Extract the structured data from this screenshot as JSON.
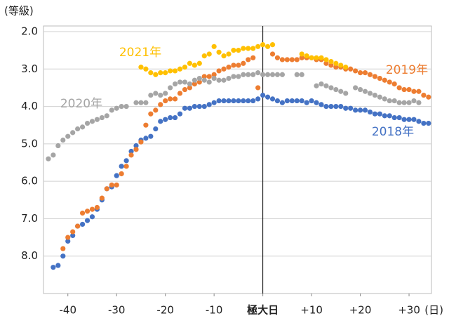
{
  "chart_data": {
    "type": "scatter",
    "y_label": "(等級)",
    "x_label": "(日)",
    "x": [
      -44,
      -43,
      -42,
      -41,
      -40,
      -39,
      -38,
      -37,
      -36,
      -35,
      -34,
      -33,
      -32,
      -31,
      -30,
      -29,
      -28,
      -27,
      -26,
      -25,
      -24,
      -23,
      -22,
      -21,
      -20,
      -19,
      -18,
      -17,
      -16,
      -15,
      -14,
      -13,
      -12,
      -11,
      -10,
      -9,
      -8,
      -7,
      -6,
      -5,
      -4,
      -3,
      -2,
      -1,
      0,
      1,
      2,
      3,
      4,
      5,
      6,
      7,
      8,
      9,
      10,
      11,
      12,
      13,
      14,
      15,
      16,
      17,
      18,
      19,
      20,
      21,
      22,
      23,
      24,
      25,
      26,
      27,
      28,
      29,
      30,
      31,
      32,
      33,
      34
    ],
    "series": [
      {
        "name": "2018年",
        "color": "#4472c4",
        "values": [
          null,
          8.3,
          8.25,
          8.0,
          7.6,
          7.45,
          7.2,
          7.15,
          7.05,
          6.95,
          6.75,
          6.5,
          6.2,
          6.15,
          5.85,
          5.6,
          5.45,
          5.2,
          5.05,
          4.9,
          4.85,
          4.8,
          4.6,
          4.4,
          4.35,
          4.3,
          4.3,
          4.2,
          4.05,
          4.05,
          4.0,
          4.0,
          4.0,
          3.95,
          3.9,
          3.85,
          3.85,
          3.85,
          3.85,
          3.85,
          3.85,
          3.85,
          3.85,
          3.8,
          3.7,
          3.75,
          3.8,
          3.85,
          3.9,
          3.85,
          3.85,
          3.85,
          3.85,
          3.9,
          3.85,
          3.9,
          3.95,
          4.0,
          4.0,
          4.0,
          4.0,
          4.05,
          4.05,
          4.1,
          4.1,
          4.1,
          4.15,
          4.2,
          4.2,
          4.25,
          4.25,
          4.3,
          4.3,
          4.35,
          4.35,
          4.35,
          4.4,
          4.45,
          4.45
        ]
      },
      {
        "name": "2019年",
        "color": "#ed7d31",
        "values": [
          null,
          null,
          null,
          7.8,
          7.5,
          7.35,
          7.2,
          6.85,
          6.8,
          6.75,
          6.7,
          6.45,
          6.2,
          6.1,
          6.1,
          5.8,
          5.6,
          5.3,
          5.15,
          4.95,
          4.5,
          4.2,
          4.1,
          3.95,
          3.85,
          3.8,
          3.8,
          3.65,
          3.55,
          3.5,
          3.4,
          3.35,
          3.2,
          3.2,
          3.15,
          3.05,
          3.0,
          2.95,
          2.9,
          2.9,
          2.85,
          2.75,
          2.7,
          3.5,
          null,
          null,
          2.6,
          2.7,
          2.75,
          2.75,
          2.75,
          2.75,
          2.7,
          2.7,
          2.7,
          2.75,
          2.75,
          2.85,
          2.9,
          2.95,
          2.95,
          3.0,
          3.0,
          3.05,
          3.1,
          3.1,
          3.15,
          3.2,
          3.25,
          3.3,
          3.35,
          3.4,
          3.5,
          3.55,
          3.55,
          3.6,
          3.6,
          3.7,
          3.75
        ]
      },
      {
        "name": "2020年",
        "color": "#a5a5a5",
        "values": [
          5.4,
          5.3,
          5.05,
          4.9,
          4.8,
          4.7,
          4.6,
          4.55,
          4.45,
          4.4,
          4.35,
          4.3,
          4.25,
          4.1,
          4.05,
          4.0,
          4.0,
          null,
          3.9,
          3.9,
          3.9,
          3.7,
          3.65,
          3.7,
          3.65,
          3.5,
          3.4,
          3.35,
          3.35,
          3.4,
          3.3,
          3.25,
          3.3,
          3.35,
          3.25,
          3.3,
          3.3,
          3.25,
          3.2,
          3.2,
          3.15,
          3.15,
          3.15,
          3.1,
          3.15,
          3.15,
          3.15,
          3.15,
          3.15,
          null,
          null,
          3.15,
          3.15,
          null,
          null,
          3.45,
          3.4,
          3.45,
          3.5,
          3.55,
          3.6,
          3.65,
          null,
          3.5,
          3.55,
          3.6,
          3.65,
          3.7,
          3.75,
          3.8,
          3.85,
          3.85,
          3.9,
          3.9,
          3.9,
          3.85,
          3.9,
          null,
          null
        ]
      },
      {
        "name": "2021年",
        "color": "#ffc000",
        "values": [
          null,
          null,
          null,
          null,
          null,
          null,
          null,
          null,
          null,
          null,
          null,
          null,
          null,
          null,
          null,
          null,
          null,
          null,
          null,
          2.95,
          3.0,
          3.1,
          3.15,
          3.1,
          3.1,
          3.05,
          3.05,
          3.0,
          2.95,
          2.85,
          2.9,
          2.85,
          2.65,
          2.6,
          2.4,
          2.55,
          2.65,
          2.6,
          2.5,
          2.5,
          2.45,
          2.45,
          2.45,
          2.4,
          2.35,
          2.4,
          2.35,
          null,
          null,
          null,
          null,
          null,
          2.6,
          2.65,
          2.7,
          2.7,
          2.7,
          2.75,
          2.8,
          2.85,
          2.9,
          2.95,
          null,
          null,
          null,
          null,
          null,
          null,
          null,
          null,
          null,
          null,
          null,
          null,
          null,
          null,
          null,
          null,
          null
        ]
      }
    ],
    "xlim": [
      -45,
      34.6
    ],
    "xticks": [
      -40,
      -30,
      -20,
      -10,
      {
        "value": 0,
        "label": "極大日"
      },
      {
        "value": 10,
        "label": "+10"
      },
      {
        "value": 20,
        "label": "+20"
      },
      {
        "value": 30,
        "label": "+30"
      }
    ],
    "ylim": [
      1.85,
      9.0
    ],
    "y_inverted": true,
    "yticks": [
      {
        "value": 2,
        "label": "2.0"
      },
      {
        "value": 3,
        "label": "3.0"
      },
      {
        "value": 4,
        "label": "4.0"
      },
      {
        "value": 5,
        "label": "5.0"
      },
      {
        "value": 6,
        "label": "6.0"
      },
      {
        "value": 7,
        "label": "7.0"
      },
      {
        "value": 8,
        "label": "8.0"
      }
    ],
    "grid": true
  }
}
